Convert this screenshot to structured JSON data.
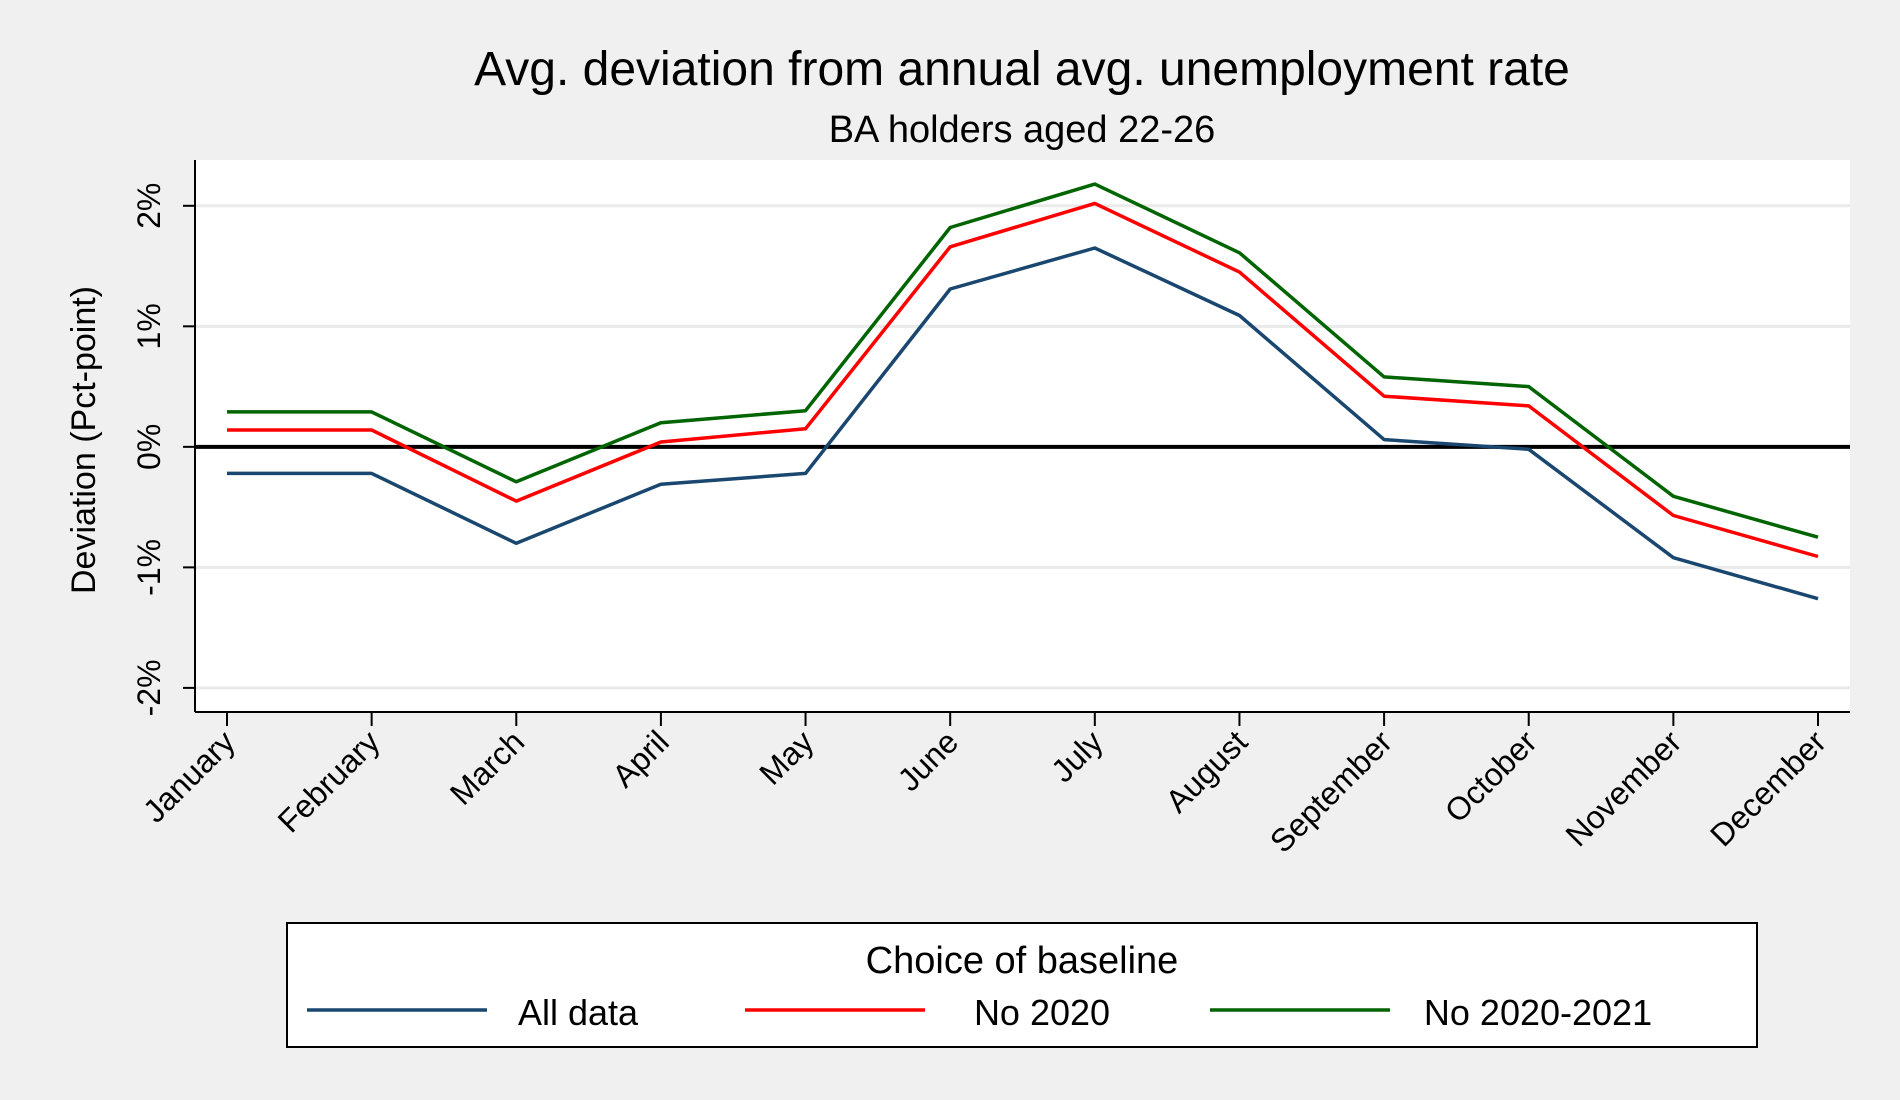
{
  "chart_data": {
    "type": "line",
    "title": "Avg. deviation from annual avg. unemployment rate",
    "subtitle": "BA holders aged 22-26",
    "ylabel": "Deviation (Pct-point)",
    "xlabel": "",
    "categories": [
      "January",
      "February",
      "March",
      "April",
      "May",
      "June",
      "July",
      "August",
      "September",
      "October",
      "November",
      "December"
    ],
    "ylim": [
      -2.2,
      2.38
    ],
    "yticks": [
      -2,
      -1,
      0,
      1,
      2
    ],
    "ytick_labels": [
      "-2%",
      "-1%",
      "0%",
      "1%",
      "2%"
    ],
    "grid": true,
    "reference_line": 0,
    "legend_title": "Choice of baseline",
    "legend_position": "bottom",
    "series": [
      {
        "name": "All data",
        "color": "#1a476f",
        "values": [
          -0.22,
          -0.22,
          -0.8,
          -0.31,
          -0.22,
          1.31,
          1.65,
          1.09,
          0.06,
          -0.02,
          -0.92,
          -1.26
        ]
      },
      {
        "name": "No 2020",
        "color": "#ff0000",
        "values": [
          0.14,
          0.14,
          -0.45,
          0.04,
          0.15,
          1.66,
          2.02,
          1.45,
          0.42,
          0.34,
          -0.57,
          -0.91
        ]
      },
      {
        "name": "No 2020-2021",
        "color": "#006400",
        "values": [
          0.29,
          0.29,
          -0.29,
          0.2,
          0.3,
          1.82,
          2.18,
          1.61,
          0.58,
          0.5,
          -0.41,
          -0.75
        ]
      }
    ]
  }
}
